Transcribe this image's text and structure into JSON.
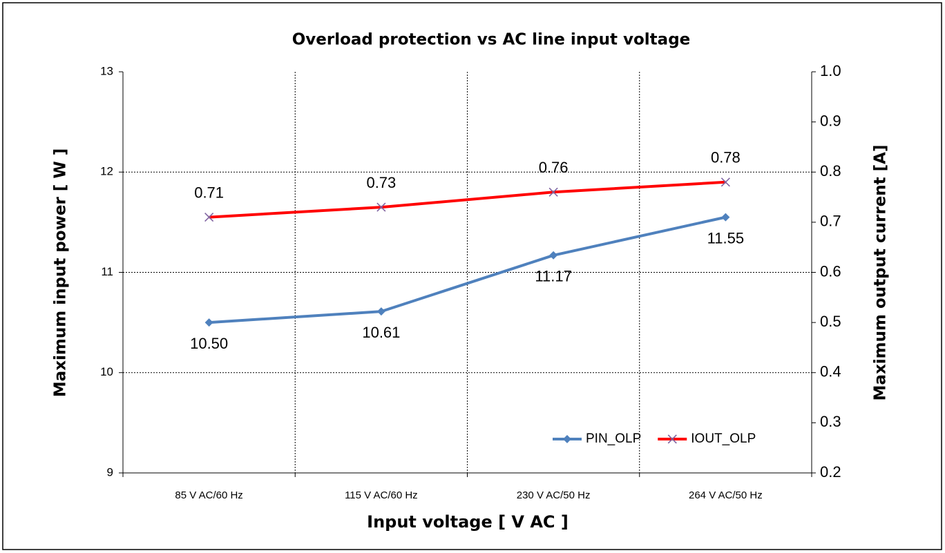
{
  "chart_data": {
    "type": "line",
    "title": "Overload protection vs AC line input voltage",
    "x_label": "Input voltage [ V AC ]",
    "y_label": "Maximum input power [ W ]",
    "y2_label": "Maximum output current [A]",
    "categories": [
      "85 V AC/60 Hz",
      "115 V AC/60 Hz",
      "230 V AC/50 Hz",
      "264 V AC/50 Hz"
    ],
    "ylim": [
      9,
      13
    ],
    "yticks": [
      9,
      10,
      11,
      12,
      13
    ],
    "y2lim": [
      0.2,
      1.0
    ],
    "y2ticks": [
      0.2,
      0.3,
      0.4,
      0.5,
      0.6,
      0.7,
      0.8,
      0.9,
      {
        "value": 1.0,
        "label": "1.0"
      }
    ],
    "grid": true,
    "legend": "lower right",
    "series": [
      {
        "name": "PIN_OLP",
        "color": "#4f81bd",
        "marker": "diamond",
        "values": [
          10.5,
          10.61,
          11.17,
          11.55
        ],
        "value_labels": [
          "10.50",
          "10.61",
          "11.17",
          "11.55"
        ]
      },
      {
        "name": "IOUT_OLP",
        "color": "#ff0000",
        "marker": "x",
        "axis": "y2",
        "values": [
          0.71,
          0.73,
          0.76,
          0.78
        ]
      }
    ]
  }
}
